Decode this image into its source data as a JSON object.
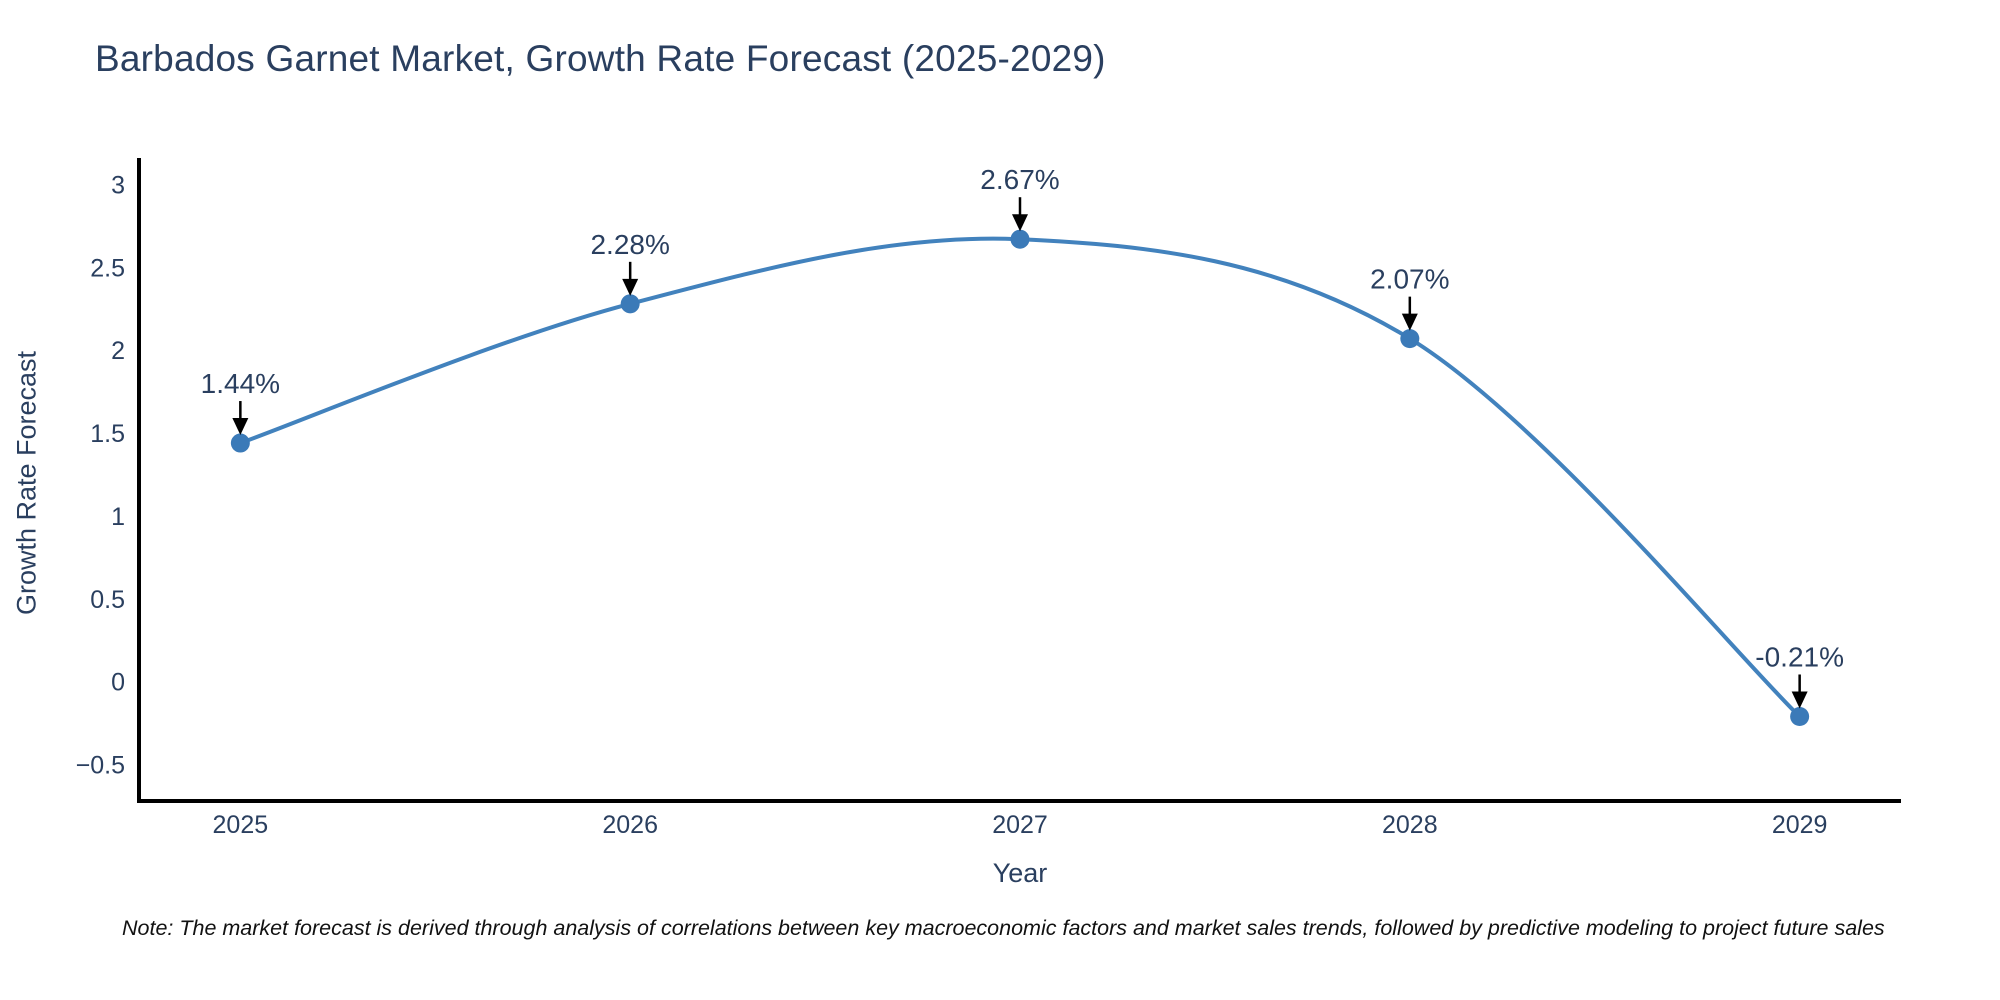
{
  "note": "Note: The market forecast is derived through analysis of correlations between key macroeconomic factors and market sales trends, followed by predictive modeling to project future sales",
  "chart_data": {
    "type": "line",
    "title": "Barbados Garnet Market, Growth Rate Forecast (2025-2029)",
    "xlabel": "Year",
    "ylabel": "Growth Rate Forecast",
    "categories": [
      2025,
      2026,
      2027,
      2028,
      2029
    ],
    "series": [
      {
        "name": "Growth Rate Forecast",
        "values": [
          1.44,
          2.28,
          2.67,
          2.07,
          -0.21
        ],
        "point_labels": [
          "1.44%",
          "2.28%",
          "2.67%",
          "2.07%",
          "-0.21%"
        ]
      }
    ],
    "line_shape": "spline",
    "markers": true,
    "grid": false,
    "legend": false,
    "xlim": [
      2024.74,
      2029.26
    ],
    "ylim": [
      -0.72,
      3.16
    ],
    "yticks": {
      "values": [
        3,
        2.5,
        2,
        1.5,
        1,
        0.5,
        0,
        -0.5
      ],
      "labels": [
        "3",
        "2.5",
        "2",
        "1.5",
        "1",
        "0.5",
        "0",
        "−0.5"
      ]
    },
    "xticks": {
      "values": [
        2025,
        2026,
        2027,
        2028,
        2029
      ],
      "labels": [
        "2025",
        "2026",
        "2027",
        "2028",
        "2029"
      ]
    },
    "colors": {
      "line": "#4282bd",
      "marker": "#3b7ab8",
      "axis": "#000000",
      "tick_text": "#2a3f5f",
      "annotation_text": "#2a3f5f",
      "arrow": "#000000",
      "title_text": "#2a3f5f"
    }
  }
}
